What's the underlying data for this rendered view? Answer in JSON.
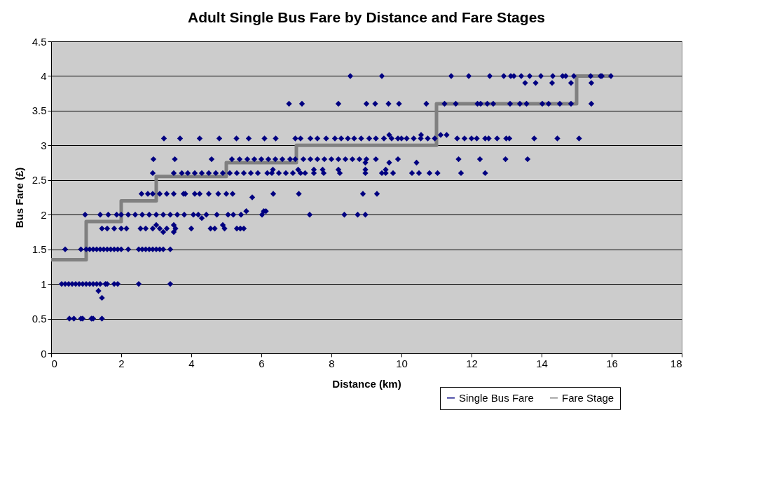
{
  "chart_data": {
    "type": "scatter",
    "title": "Adult Single Bus Fare by Distance and Fare Stages",
    "xlabel": "Distance (km)",
    "ylabel": "Bus Fare (£)",
    "xlim": [
      0,
      18
    ],
    "xticks": [
      0,
      2,
      4,
      6,
      8,
      10,
      12,
      14,
      16,
      18
    ],
    "ylim": [
      0,
      4.5
    ],
    "yticks": [
      0,
      0.5,
      1,
      1.5,
      2,
      2.5,
      3,
      3.5,
      4,
      4.5
    ],
    "grid": "y",
    "legend": "bottom right",
    "series": [
      {
        "name": "Single Bus Fare",
        "color": "#000080",
        "marker": "diamond",
        "x": [
          0.52,
          0.65,
          0.85,
          0.9,
          1.15,
          1.2,
          1.45,
          1.45,
          1.35,
          0.3,
          0.4,
          0.5,
          0.6,
          0.7,
          0.8,
          0.9,
          1.0,
          1.1,
          1.2,
          1.3,
          1.4,
          1.55,
          1.6,
          1.8,
          1.9,
          2.5,
          3.4,
          0.4,
          0.85,
          1.0,
          1.1,
          1.2,
          1.3,
          1.4,
          1.5,
          1.6,
          1.7,
          1.8,
          1.9,
          2.0,
          2.2,
          2.5,
          2.6,
          2.7,
          2.8,
          2.9,
          3.0,
          3.1,
          3.2,
          3.4,
          1.45,
          1.6,
          1.8,
          2.0,
          2.15,
          2.55,
          2.7,
          2.9,
          3.1,
          3.3,
          3.55,
          4.0,
          4.55,
          4.67,
          4.95,
          5.3,
          5.4,
          5.5,
          3.2,
          3.5,
          3.0,
          3.5,
          4.9,
          0.97,
          1.4,
          1.63,
          1.87,
          2.0,
          2.2,
          2.4,
          2.6,
          2.8,
          3.0,
          3.2,
          3.4,
          3.6,
          3.8,
          4.06,
          4.2,
          4.43,
          4.73,
          5.05,
          5.2,
          5.42,
          6.02,
          7.38,
          8.37,
          8.75,
          8.97,
          5.57,
          6.07,
          6.13,
          4.3,
          5.74,
          2.58,
          2.76,
          2.9,
          3.1,
          3.3,
          3.5,
          3.78,
          3.83,
          4.1,
          4.24,
          4.5,
          4.77,
          5.0,
          5.18,
          6.34,
          7.07,
          8.9,
          9.3,
          2.9,
          3.5,
          3.73,
          3.9,
          4.1,
          4.3,
          4.5,
          4.7,
          4.9,
          5.1,
          5.3,
          5.5,
          5.7,
          5.9,
          6.17,
          6.3,
          6.5,
          6.7,
          6.9,
          7.12,
          7.25,
          7.5,
          7.78,
          8.24,
          8.97,
          9.44,
          9.55,
          9.76,
          10.3,
          10.5,
          10.8,
          11.03,
          11.7,
          12.39,
          6.33,
          7.05,
          7.5,
          7.75,
          8.2,
          8.97,
          9.55,
          2.92,
          3.53,
          4.58,
          5.16,
          5.38,
          5.6,
          5.8,
          6.0,
          6.2,
          6.4,
          6.6,
          6.82,
          6.97,
          7.2,
          7.4,
          7.6,
          7.8,
          8.0,
          8.2,
          8.4,
          8.6,
          8.8,
          9.0,
          9.27,
          9.9,
          11.63,
          12.24,
          12.97,
          13.6,
          8.97,
          9.65,
          10.43,
          3.22,
          3.68,
          4.24,
          4.8,
          5.29,
          5.64,
          6.09,
          6.41,
          6.97,
          7.12,
          7.4,
          7.6,
          7.85,
          8.1,
          8.28,
          8.47,
          8.65,
          8.85,
          9.08,
          9.27,
          9.5,
          9.72,
          9.9,
          10.0,
          10.15,
          10.35,
          10.55,
          10.75,
          10.95,
          11.59,
          11.8,
          12.0,
          12.15,
          12.39,
          12.49,
          12.73,
          12.99,
          13.08,
          13.79,
          14.45,
          15.07,
          9.65,
          10.56,
          11.12,
          11.29,
          6.79,
          7.16,
          8.2,
          9.0,
          9.25,
          9.63,
          9.93,
          10.71,
          11.23,
          11.55,
          12.17,
          12.26,
          12.45,
          12.62,
          13.1,
          13.38,
          13.57,
          14.02,
          14.2,
          14.52,
          14.84,
          15.42,
          13.53,
          13.83,
          14.3,
          14.84,
          15.42,
          8.54,
          9.44,
          11.42,
          11.92,
          12.52,
          12.92,
          13.12,
          13.21,
          13.42,
          13.66,
          13.98,
          14.32,
          14.6,
          14.69,
          14.92,
          15.4,
          15.68,
          15.72,
          15.98
        ],
        "values": [
          0.5,
          0.5,
          0.5,
          0.5,
          0.5,
          0.5,
          0.5,
          0.8,
          0.9,
          1,
          1,
          1,
          1,
          1,
          1,
          1,
          1,
          1,
          1,
          1,
          1,
          1,
          1,
          1,
          1,
          1,
          1,
          1.5,
          1.5,
          1.5,
          1.5,
          1.5,
          1.5,
          1.5,
          1.5,
          1.5,
          1.5,
          1.5,
          1.5,
          1.5,
          1.5,
          1.5,
          1.5,
          1.5,
          1.5,
          1.5,
          1.5,
          1.5,
          1.5,
          1.5,
          1.8,
          1.8,
          1.8,
          1.8,
          1.8,
          1.8,
          1.8,
          1.8,
          1.8,
          1.8,
          1.8,
          1.8,
          1.8,
          1.8,
          1.8,
          1.8,
          1.8,
          1.8,
          1.75,
          1.75,
          1.85,
          1.85,
          1.85,
          2,
          2,
          2,
          2,
          2,
          2,
          2,
          2,
          2,
          2,
          2,
          2,
          2,
          2,
          2,
          2,
          2,
          2,
          2,
          2,
          2,
          2,
          2,
          2,
          2,
          2,
          2.05,
          2.05,
          2.05,
          1.95,
          2.25,
          2.3,
          2.3,
          2.3,
          2.3,
          2.3,
          2.3,
          2.3,
          2.3,
          2.3,
          2.3,
          2.3,
          2.3,
          2.3,
          2.3,
          2.3,
          2.3,
          2.3,
          2.3,
          2.6,
          2.6,
          2.6,
          2.6,
          2.6,
          2.6,
          2.6,
          2.6,
          2.6,
          2.6,
          2.6,
          2.6,
          2.6,
          2.6,
          2.6,
          2.6,
          2.6,
          2.6,
          2.6,
          2.6,
          2.6,
          2.6,
          2.6,
          2.6,
          2.6,
          2.6,
          2.6,
          2.6,
          2.6,
          2.6,
          2.6,
          2.6,
          2.6,
          2.6,
          2.65,
          2.65,
          2.65,
          2.65,
          2.65,
          2.65,
          2.65,
          2.8,
          2.8,
          2.8,
          2.8,
          2.8,
          2.8,
          2.8,
          2.8,
          2.8,
          2.8,
          2.8,
          2.8,
          2.8,
          2.8,
          2.8,
          2.8,
          2.8,
          2.8,
          2.8,
          2.8,
          2.8,
          2.8,
          2.8,
          2.8,
          2.8,
          2.8,
          2.8,
          2.8,
          2.8,
          2.75,
          2.75,
          2.75,
          3.1,
          3.1,
          3.1,
          3.1,
          3.1,
          3.1,
          3.1,
          3.1,
          3.1,
          3.1,
          3.1,
          3.1,
          3.1,
          3.1,
          3.1,
          3.1,
          3.1,
          3.1,
          3.1,
          3.1,
          3.1,
          3.1,
          3.1,
          3.1,
          3.1,
          3.1,
          3.1,
          3.1,
          3.1,
          3.1,
          3.1,
          3.1,
          3.1,
          3.1,
          3.1,
          3.1,
          3.1,
          3.1,
          3.1,
          3.1,
          3.1,
          3.15,
          3.15,
          3.15,
          3.15,
          3.6,
          3.6,
          3.6,
          3.6,
          3.6,
          3.6,
          3.6,
          3.6,
          3.6,
          3.6,
          3.6,
          3.6,
          3.6,
          3.6,
          3.6,
          3.6,
          3.6,
          3.6,
          3.6,
          3.6,
          3.6,
          3.6,
          3.9,
          3.9,
          3.9,
          3.9,
          3.9,
          4,
          4,
          4,
          4,
          4,
          4,
          4,
          4,
          4,
          4,
          4,
          4,
          4,
          4,
          4,
          4,
          4,
          4,
          4
        ]
      },
      {
        "name": "Fare Stage",
        "type": "step",
        "color": "#808080",
        "line_style": "solid",
        "marker": "none",
        "x": [
          0,
          1,
          2,
          3,
          5,
          7,
          11,
          15,
          16
        ],
        "values": [
          1.35,
          1.9,
          2.2,
          2.55,
          2.75,
          3.0,
          3.6,
          4.0,
          4.0
        ]
      }
    ]
  }
}
